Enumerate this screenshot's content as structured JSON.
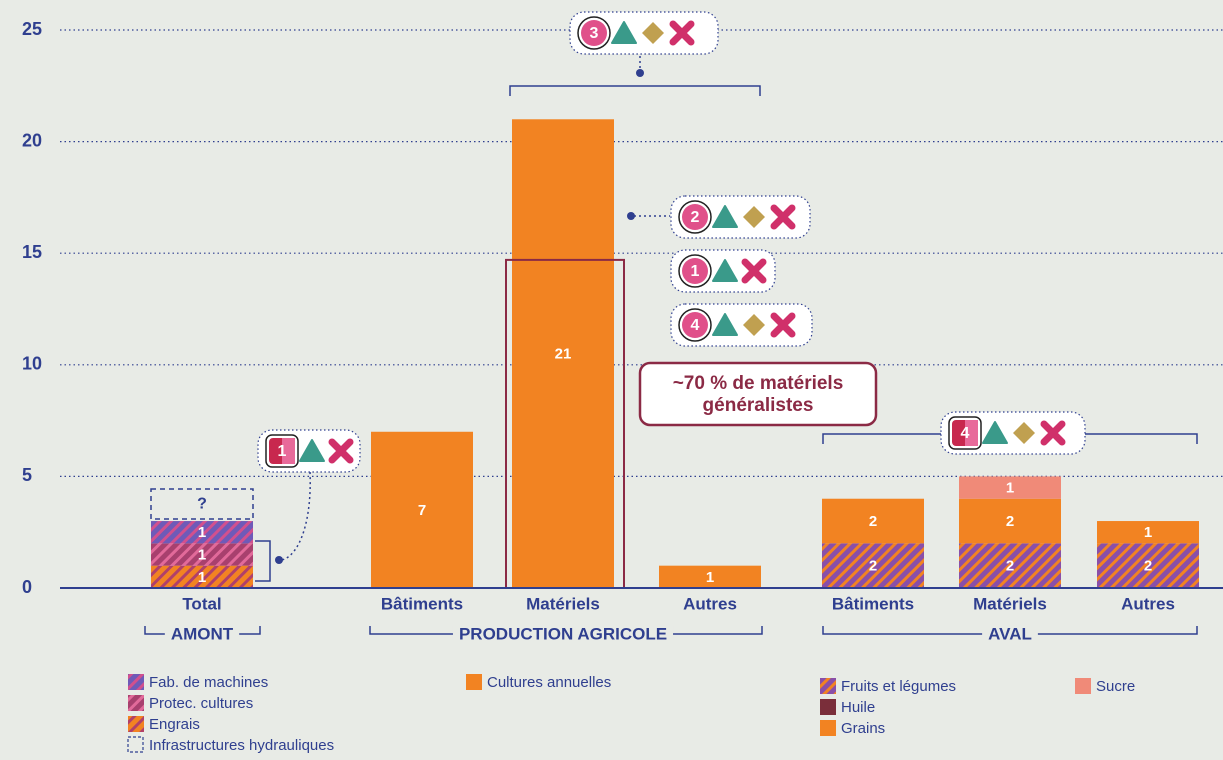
{
  "chart_data": {
    "type": "stacked_bar",
    "categories": [
      "Total",
      "Bâtiments",
      "Matériels",
      "Autres",
      "Bâtiments",
      "Matériels",
      "Autres"
    ],
    "groups": [
      "AMONT",
      "PRODUCTION AGRICOLE",
      "AVAL"
    ],
    "ylim": [
      0,
      25
    ],
    "yticks": [
      0,
      5,
      10,
      15,
      20,
      25
    ],
    "grid": true,
    "series": [
      {
        "name": "Engrais",
        "style": "hatch",
        "color": "#f28322",
        "hatch": "#b0406a",
        "values": [
          1,
          null,
          null,
          null,
          null,
          null,
          null
        ]
      },
      {
        "name": "Protec. cultures",
        "style": "hatch",
        "color": "#a8406e",
        "hatch": "#e26a9a",
        "values": [
          1,
          null,
          null,
          null,
          null,
          null,
          null
        ]
      },
      {
        "name": "Fab. de machines",
        "style": "hatch",
        "color": "#6f5ab8",
        "hatch": "#d2508e",
        "values": [
          1,
          null,
          null,
          null,
          null,
          null,
          null
        ]
      },
      {
        "name": "Infrastructures hydrauliques",
        "style": "dashed",
        "color": "#2f3f8f",
        "values": [
          null,
          null,
          null,
          null,
          null,
          null,
          null
        ],
        "value_labels": [
          "?",
          null,
          null,
          null,
          null,
          null,
          null
        ]
      },
      {
        "name": "Cultures annuelles",
        "style": "solid",
        "color": "#f28322",
        "values": [
          null,
          7,
          21,
          1,
          null,
          null,
          null
        ]
      },
      {
        "name": "Fruits et légumes",
        "style": "hatch",
        "color": "#8a4fa8",
        "hatch": "#f28322",
        "values": [
          null,
          null,
          null,
          null,
          2,
          2,
          2
        ]
      },
      {
        "name": "Huile",
        "style": "solid",
        "color": "#7a2e3a",
        "values": [
          null,
          null,
          null,
          null,
          null,
          null,
          null
        ]
      },
      {
        "name": "Grains",
        "style": "solid",
        "color": "#f28322",
        "values": [
          null,
          null,
          null,
          null,
          2,
          2,
          1
        ]
      },
      {
        "name": "Sucre",
        "style": "solid",
        "color": "#f08a78",
        "values": [
          null,
          null,
          null,
          null,
          null,
          1,
          null
        ]
      }
    ],
    "highlight": {
      "value": 14.7,
      "lines": [
        "~70 % de matériels",
        "généralistes"
      ]
    },
    "badges": [
      "3",
      "2",
      "1",
      "4",
      "1",
      "4"
    ]
  }
}
